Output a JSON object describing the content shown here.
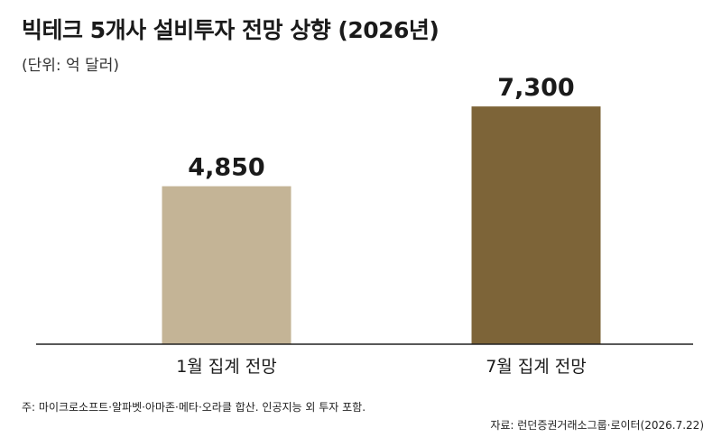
{
  "chart_data": {
    "type": "bar",
    "title": "빅테크 5개사 설비투자 전망 상향 (2026년)",
    "unit_label": "(단위: 억 달러)",
    "categories": [
      "1월 집계 전망",
      "7월 집계 전망"
    ],
    "values": [
      4850,
      7300
    ],
    "value_labels": [
      "4,850",
      "7,300"
    ],
    "bar_colors": [
      "#c4b496",
      "#7d6438"
    ],
    "ylim": [
      0,
      8300
    ],
    "grid": false,
    "legend": "none",
    "note": "주: 마이크로소프트·알파벳·아마존·메타·오라클 합산. 인공지능 외 투자 포함.",
    "source": "자료: 런던증권거래소그룹·로이터(2026.7.22)"
  }
}
